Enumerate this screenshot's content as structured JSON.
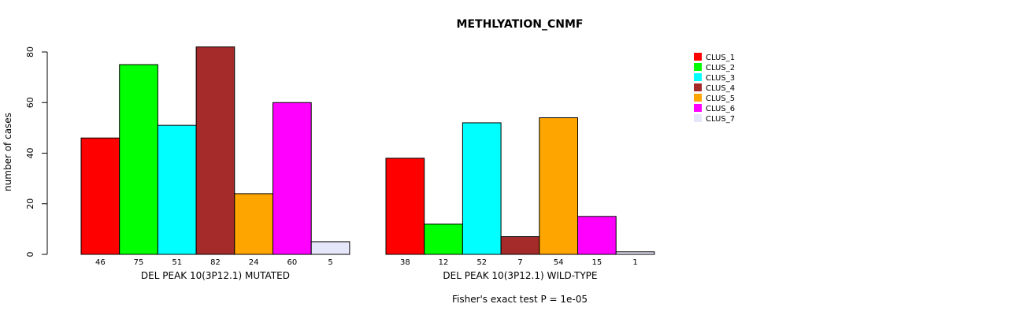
{
  "chart_data": {
    "type": "bar",
    "title": "METHLYATION_CNMF",
    "ylabel": "number of cases",
    "ylim": [
      0,
      80
    ],
    "yticks": [
      0,
      20,
      40,
      60,
      80
    ],
    "grid": false,
    "legend_position": "top-right",
    "series": [
      {
        "name": "CLUS_1",
        "color": "#ff0000"
      },
      {
        "name": "CLUS_2",
        "color": "#00ff00"
      },
      {
        "name": "CLUS_3",
        "color": "#00ffff"
      },
      {
        "name": "CLUS_4",
        "color": "#a52a2a"
      },
      {
        "name": "CLUS_5",
        "color": "#ffa500"
      },
      {
        "name": "CLUS_6",
        "color": "#ff00ff"
      },
      {
        "name": "CLUS_7",
        "color": "#e6e6fa"
      }
    ],
    "groups": [
      {
        "label": "DEL PEAK 10(3P12.1) MUTATED",
        "values": [
          46,
          75,
          51,
          82,
          24,
          60,
          5
        ]
      },
      {
        "label": "DEL PEAK 10(3P12.1) WILD-TYPE",
        "values": [
          38,
          12,
          52,
          7,
          54,
          15,
          1
        ]
      }
    ],
    "footnote": "Fisher's exact test P = 1e-05"
  }
}
